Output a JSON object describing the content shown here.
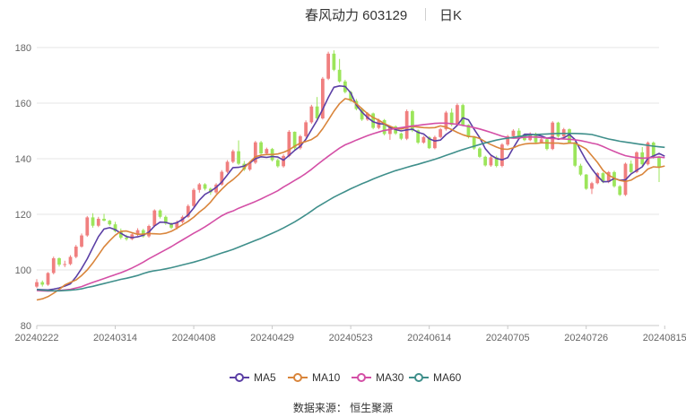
{
  "header": {
    "title": "春风动力 603129",
    "period": "日K"
  },
  "legend": [
    {
      "label": "MA5",
      "color": "#5b3fa5"
    },
    {
      "label": "MA10",
      "color": "#d9853b"
    },
    {
      "label": "MA30",
      "color": "#d44fa6"
    },
    {
      "label": "MA60",
      "color": "#3f8f8b"
    }
  ],
  "source_text": "数据来源： 恒生聚源",
  "colors": {
    "up": "#f07f7f",
    "down": "#9ce55b",
    "grid": "#e6e6e6",
    "axis_text": "#666666"
  },
  "chart_data": {
    "type": "candlestick",
    "title": "春风动力 603129",
    "ylim": [
      80,
      180
    ],
    "yticks": [
      80,
      100,
      120,
      140,
      160,
      180
    ],
    "xtick_labels": [
      "20240222",
      "20240314",
      "20240408",
      "20240429",
      "20240523",
      "20240614",
      "20240705",
      "20240726",
      "20240815"
    ],
    "xtick_indices": [
      0,
      14,
      28,
      42,
      56,
      70,
      84,
      98,
      112
    ],
    "ohlc": [
      [
        94.0,
        96.7,
        93.5,
        95.6
      ],
      [
        95.6,
        96.2,
        94.0,
        94.7
      ],
      [
        94.7,
        99.2,
        94.3,
        98.9
      ],
      [
        98.9,
        104.8,
        98.4,
        104.2
      ],
      [
        104.2,
        104.5,
        101.2,
        101.9
      ],
      [
        101.9,
        103.3,
        101.0,
        102.1
      ],
      [
        102.1,
        105.3,
        101.7,
        104.7
      ],
      [
        104.7,
        109.0,
        104.2,
        108.4
      ],
      [
        108.4,
        113.1,
        108.0,
        112.4
      ],
      [
        112.4,
        119.4,
        111.9,
        118.9
      ],
      [
        118.9,
        120.4,
        115.2,
        115.9
      ],
      [
        115.9,
        119.1,
        115.4,
        118.4
      ],
      [
        118.4,
        120.2,
        117.5,
        117.7
      ],
      [
        117.7,
        118.0,
        115.9,
        116.4
      ],
      [
        116.4,
        117.3,
        113.5,
        113.9
      ],
      [
        113.9,
        114.9,
        111.0,
        111.6
      ],
      [
        111.6,
        112.7,
        110.5,
        111.1
      ],
      [
        111.1,
        113.4,
        110.7,
        112.8
      ],
      [
        112.8,
        115.0,
        112.2,
        114.3
      ],
      [
        114.3,
        114.8,
        111.6,
        112.1
      ],
      [
        112.1,
        116.3,
        111.6,
        115.8
      ],
      [
        115.8,
        121.8,
        115.4,
        121.4
      ],
      [
        121.4,
        121.8,
        118.5,
        119.1
      ],
      [
        119.1,
        119.6,
        116.2,
        116.7
      ],
      [
        116.7,
        117.1,
        114.7,
        115.2
      ],
      [
        115.2,
        117.8,
        114.6,
        117.2
      ],
      [
        117.2,
        119.6,
        116.7,
        119.1
      ],
      [
        119.1,
        123.6,
        118.7,
        123.0
      ],
      [
        123.0,
        129.4,
        122.5,
        128.8
      ],
      [
        128.8,
        131.3,
        127.8,
        130.8
      ],
      [
        130.8,
        131.2,
        128.6,
        129.2
      ],
      [
        129.2,
        129.6,
        127.0,
        127.9
      ],
      [
        127.9,
        131.2,
        127.4,
        130.7
      ],
      [
        130.7,
        135.9,
        130.3,
        135.3
      ],
      [
        135.3,
        139.5,
        134.8,
        138.9
      ],
      [
        138.9,
        143.3,
        138.4,
        142.7
      ],
      [
        142.7,
        146.6,
        137.7,
        138.2
      ],
      [
        138.2,
        139.2,
        135.6,
        136.1
      ],
      [
        136.1,
        139.1,
        135.6,
        138.6
      ],
      [
        138.6,
        146.4,
        138.1,
        145.9
      ],
      [
        145.9,
        146.4,
        141.4,
        141.9
      ],
      [
        141.9,
        144.0,
        141.4,
        143.5
      ],
      [
        143.5,
        143.9,
        139.0,
        139.5
      ],
      [
        139.5,
        140.1,
        136.8,
        137.3
      ],
      [
        137.3,
        141.6,
        136.8,
        141.0
      ],
      [
        141.0,
        150.3,
        140.5,
        149.7
      ],
      [
        149.7,
        149.8,
        143.3,
        143.8
      ],
      [
        143.8,
        148.6,
        143.3,
        148.1
      ],
      [
        148.1,
        153.8,
        147.6,
        153.1
      ],
      [
        153.1,
        159.4,
        152.6,
        158.8
      ],
      [
        158.8,
        162.2,
        153.8,
        154.5
      ],
      [
        154.5,
        169.4,
        154.1,
        168.8
      ],
      [
        168.8,
        178.5,
        168.3,
        177.8
      ],
      [
        177.8,
        179.0,
        171.5,
        172.0
      ],
      [
        172.0,
        175.9,
        167.3,
        167.8
      ],
      [
        167.8,
        168.4,
        163.5,
        164.0
      ],
      [
        164.0,
        164.4,
        160.4,
        160.8
      ],
      [
        160.8,
        161.5,
        157.4,
        157.9
      ],
      [
        157.9,
        158.4,
        153.6,
        154.1
      ],
      [
        154.1,
        156.8,
        153.6,
        156.3
      ],
      [
        156.3,
        156.6,
        150.6,
        151.1
      ],
      [
        151.1,
        154.4,
        150.6,
        153.9
      ],
      [
        153.9,
        154.3,
        148.4,
        148.9
      ],
      [
        148.9,
        152.0,
        146.8,
        151.6
      ],
      [
        151.6,
        152.0,
        148.6,
        149.1
      ],
      [
        149.1,
        149.4,
        146.7,
        147.2
      ],
      [
        147.2,
        157.7,
        146.7,
        157.1
      ],
      [
        157.1,
        157.6,
        149.6,
        150.2
      ],
      [
        150.2,
        150.5,
        145.3,
        145.8
      ],
      [
        145.8,
        148.2,
        145.4,
        147.8
      ],
      [
        147.8,
        148.1,
        143.5,
        143.8
      ],
      [
        143.8,
        148.3,
        143.4,
        147.8
      ],
      [
        147.8,
        151.1,
        147.4,
        150.6
      ],
      [
        150.6,
        157.2,
        150.1,
        156.6
      ],
      [
        156.6,
        158.1,
        151.7,
        152.2
      ],
      [
        152.2,
        159.9,
        151.7,
        159.3
      ],
      [
        159.3,
        159.8,
        151.7,
        152.2
      ],
      [
        152.2,
        152.4,
        147.3,
        147.8
      ],
      [
        147.8,
        148.2,
        143.2,
        143.7
      ],
      [
        143.7,
        144.2,
        140.3,
        140.7
      ],
      [
        140.7,
        141.1,
        137.2,
        137.6
      ],
      [
        137.6,
        141.0,
        137.1,
        140.5
      ],
      [
        140.5,
        141.1,
        136.9,
        137.4
      ],
      [
        137.4,
        145.6,
        136.9,
        145.1
      ],
      [
        145.1,
        148.6,
        144.6,
        148.1
      ],
      [
        148.1,
        150.6,
        147.7,
        150.1
      ],
      [
        150.1,
        151.0,
        147.6,
        148.1
      ],
      [
        148.1,
        148.5,
        146.3,
        146.7
      ],
      [
        146.7,
        149.5,
        146.3,
        149.0
      ],
      [
        149.0,
        149.4,
        145.4,
        145.9
      ],
      [
        145.9,
        147.4,
        145.5,
        147.0
      ],
      [
        147.0,
        147.4,
        143.0,
        143.5
      ],
      [
        143.5,
        153.5,
        143.1,
        153.0
      ],
      [
        153.0,
        153.3,
        147.6,
        148.0
      ],
      [
        148.0,
        151.1,
        147.6,
        150.6
      ],
      [
        150.6,
        150.9,
        145.4,
        145.8
      ],
      [
        145.8,
        146.2,
        137.0,
        137.5
      ],
      [
        137.5,
        138.2,
        133.8,
        134.3
      ],
      [
        134.3,
        134.5,
        128.8,
        129.2
      ],
      [
        129.2,
        131.7,
        127.3,
        131.2
      ],
      [
        131.2,
        135.2,
        130.8,
        134.8
      ],
      [
        134.8,
        135.2,
        131.2,
        131.6
      ],
      [
        131.6,
        135.6,
        131.2,
        135.2
      ],
      [
        135.2,
        135.7,
        129.6,
        130.1
      ],
      [
        130.1,
        130.5,
        126.6,
        127.0
      ],
      [
        127.0,
        138.6,
        126.6,
        138.2
      ],
      [
        138.2,
        139.4,
        134.8,
        135.2
      ],
      [
        135.2,
        142.7,
        134.8,
        142.3
      ],
      [
        142.3,
        144.2,
        137.4,
        138.0
      ],
      [
        138.0,
        146.2,
        137.6,
        145.8
      ],
      [
        145.8,
        146.2,
        140.0,
        140.4
      ],
      [
        140.4,
        141.0,
        131.6,
        136.8
      ]
    ],
    "series": [
      {
        "name": "MA5",
        "color": "#5b3fa5",
        "values": [
          93.0,
          92.9,
          92.8,
          93.1,
          93.5,
          94.2,
          95.0,
          97.5,
          100.5,
          104.0,
          108.0,
          112.0,
          114.7,
          115.2,
          114.5,
          113.2,
          112.0,
          111.6,
          111.9,
          112.5,
          113.6,
          115.8,
          117.2,
          117.1,
          116.5,
          117.0,
          118.2,
          119.8,
          122.3,
          125.1,
          127.2,
          128.3,
          129.7,
          131.6,
          134.2,
          136.8,
          136.9,
          137.4,
          138.5,
          140.0,
          140.7,
          140.5,
          140.8,
          140.6,
          139.5,
          141.2,
          143.0,
          144.5,
          147.0,
          150.5,
          153.8,
          157.8,
          162.0,
          165.7,
          166.2,
          166.0,
          163.7,
          159.3,
          156.8,
          154.8,
          153.3,
          152.6,
          152.5,
          151.3,
          150.5,
          150.0,
          150.4,
          150.6,
          149.5,
          148.9,
          147.2,
          146.4,
          146.7,
          148.7,
          150.1,
          152.0,
          154.7,
          154.0,
          150.6,
          147.6,
          143.6,
          141.3,
          140.1,
          139.6,
          140.4,
          143.9,
          147.2,
          148.8,
          148.8,
          148.6,
          148.2,
          147.4,
          147.7,
          147.0,
          147.5,
          148.7,
          146.9,
          143.0,
          139.4,
          136.4,
          133.8,
          131.7,
          131.8,
          132.9,
          132.3,
          132.4,
          134.5,
          135.8,
          137.1,
          140.1,
          141.0,
          141.9,
          140.9
        ]
      },
      {
        "name": "MA10",
        "color": "#d9853b",
        "values": [
          89.2,
          89.6,
          90.4,
          91.6,
          93.0,
          94.6,
          95.5,
          96.4,
          98.0,
          100.0,
          102.5,
          105.4,
          108.3,
          110.5,
          112.5,
          113.9,
          114.0,
          113.4,
          112.8,
          112.9,
          113.1,
          113.0,
          112.9,
          113.2,
          113.9,
          115.0,
          116.3,
          117.5,
          119.0,
          120.8,
          122.4,
          124.4,
          126.9,
          129.0,
          131.0,
          132.5,
          134.3,
          136.6,
          138.8,
          140.7,
          141.3,
          141.5,
          141.5,
          141.7,
          142.3,
          143.2,
          144.5,
          145.6,
          146.2,
          146.9,
          148.2,
          150.8,
          153.9,
          157.1,
          159.8,
          161.6,
          161.2,
          159.8,
          158.0,
          156.2,
          154.8,
          153.9,
          152.6,
          151.7,
          150.9,
          150.7,
          151.3,
          151.6,
          151.4,
          151.2,
          151.1,
          151.2,
          151.8,
          151.4,
          150.5,
          149.5,
          148.6,
          148.0,
          147.9,
          147.3,
          146.1,
          145.1,
          144.2,
          143.5,
          143.4,
          143.9,
          144.8,
          145.3,
          145.5,
          145.5,
          145.7,
          145.7,
          145.6,
          145.6,
          145.4,
          145.6,
          145.6,
          144.6,
          143.5,
          141.1,
          138.7,
          135.8,
          134.1,
          133.0,
          132.2,
          131.8,
          132.3,
          133.5,
          134.4,
          136.3,
          137.1,
          136.9,
          137.4
        ]
      },
      {
        "name": "MA30",
        "color": "#d44fa6",
        "values": [
          92.6,
          92.5,
          92.4,
          92.5,
          92.6,
          92.8,
          93.0,
          93.5,
          94.0,
          94.8,
          95.5,
          96.2,
          96.9,
          97.6,
          98.3,
          99.0,
          99.8,
          100.7,
          101.7,
          102.8,
          104.0,
          105.1,
          106.2,
          107.3,
          108.4,
          109.6,
          110.8,
          112.0,
          113.2,
          114.3,
          115.5,
          116.8,
          118.2,
          119.5,
          120.5,
          121.2,
          122.2,
          123.0,
          123.8,
          124.6,
          125.5,
          126.5,
          127.5,
          128.5,
          129.8,
          131.0,
          132.2,
          133.4,
          134.7,
          136.2,
          137.8,
          139.4,
          140.9,
          142.4,
          143.8,
          145.0,
          145.8,
          146.7,
          147.5,
          148.3,
          149.0,
          149.6,
          150.2,
          150.5,
          150.9,
          151.2,
          151.5,
          151.8,
          152.0,
          152.3,
          152.5,
          152.7,
          152.8,
          152.8,
          152.6,
          152.4,
          152.0,
          151.6,
          151.2,
          150.7,
          150.1,
          149.5,
          148.8,
          148.1,
          147.6,
          147.4,
          147.5,
          147.7,
          147.8,
          147.8,
          147.6,
          147.4,
          147.3,
          147.2,
          147.1,
          147.0,
          146.8,
          146.5,
          146.1,
          145.6,
          145.2,
          144.4,
          143.5,
          142.6,
          141.8,
          141.1,
          140.7,
          140.4,
          140.2,
          140.3,
          140.5,
          140.6,
          140.4
        ]
      },
      {
        "name": "MA60",
        "color": "#3f8f8b",
        "values": [
          92.9,
          92.7,
          92.6,
          92.5,
          92.5,
          92.6,
          92.7,
          92.9,
          93.2,
          93.7,
          94.1,
          94.6,
          95.1,
          95.6,
          96.1,
          96.6,
          97.0,
          97.5,
          98.0,
          98.7,
          99.3,
          99.7,
          100.0,
          100.4,
          100.8,
          101.3,
          101.8,
          102.3,
          102.8,
          103.4,
          104.0,
          104.7,
          105.4,
          106.1,
          106.7,
          107.4,
          108.2,
          109.0,
          109.8,
          110.6,
          111.4,
          112.3,
          113.2,
          114.1,
          115.1,
          116.2,
          117.3,
          118.5,
          119.8,
          121.2,
          122.6,
          123.8,
          125.0,
          126.2,
          127.2,
          128.2,
          129.2,
          130.1,
          131.0,
          131.8,
          132.7,
          133.5,
          134.3,
          135.0,
          135.7,
          136.3,
          136.9,
          137.5,
          138.0,
          138.6,
          139.2,
          139.8,
          140.5,
          141.2,
          141.9,
          142.6,
          143.3,
          143.9,
          144.5,
          145.1,
          145.7,
          146.2,
          146.7,
          147.1,
          147.4,
          147.7,
          148.0,
          148.3,
          148.5,
          148.7,
          148.8,
          148.9,
          149.0,
          149.1,
          149.1,
          149.1,
          149.1,
          149.0,
          148.9,
          148.7,
          148.2,
          147.6,
          147.1,
          146.7,
          146.3,
          146.0,
          145.7,
          145.4,
          145.1,
          144.8,
          144.5,
          144.3,
          144.1
        ]
      }
    ]
  }
}
